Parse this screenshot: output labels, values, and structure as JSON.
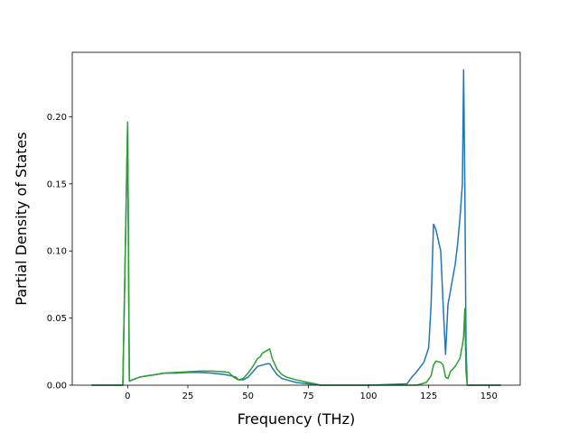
{
  "chart_data": {
    "type": "line",
    "title": "",
    "xlabel": "Frequency (THz)",
    "ylabel": "Partial Density of States",
    "xlim": [
      -23,
      163
    ],
    "ylim": [
      0,
      0.248
    ],
    "x_ticks": [
      0,
      25,
      50,
      75,
      100,
      125,
      150
    ],
    "y_ticks": [
      0.0,
      0.05,
      0.1,
      0.15,
      0.2
    ],
    "x_tick_labels": [
      "0",
      "25",
      "50",
      "75",
      "100",
      "125",
      "150"
    ],
    "y_tick_labels": [
      "0.00",
      "0.05",
      "0.10",
      "0.15",
      "0.20"
    ],
    "grid": false,
    "legend": false,
    "series": [
      {
        "color": "#1f77b4",
        "x": [
          -15,
          -2,
          0.0,
          0.7,
          2,
          5,
          8,
          12,
          15,
          20,
          25,
          30,
          35,
          40,
          43,
          45,
          46,
          48,
          50,
          52,
          54,
          56,
          58,
          59,
          60,
          62,
          64,
          66,
          68,
          70,
          75,
          78,
          80,
          100,
          116,
          118,
          120,
          123,
          125,
          126,
          127,
          128,
          129,
          130,
          131,
          132,
          133,
          134,
          135,
          136,
          137,
          138,
          139,
          139.5,
          140,
          140.5,
          141,
          145,
          155
        ],
        "y": [
          0,
          0,
          0.195,
          0.003,
          0.004,
          0.006,
          0.007,
          0.008,
          0.009,
          0.009,
          0.0095,
          0.0095,
          0.009,
          0.008,
          0.007,
          0.006,
          0.004,
          0.004,
          0.006,
          0.01,
          0.014,
          0.015,
          0.016,
          0.016,
          0.013,
          0.008,
          0.005,
          0.004,
          0.003,
          0.002,
          0.001,
          0.0005,
          0,
          0,
          0.001,
          0.006,
          0.01,
          0.017,
          0.028,
          0.06,
          0.12,
          0.116,
          0.108,
          0.1,
          0.06,
          0.023,
          0.06,
          0.07,
          0.08,
          0.09,
          0.105,
          0.125,
          0.15,
          0.235,
          0.15,
          0.03,
          0,
          0,
          0
        ]
      },
      {
        "color": "#2ca02c",
        "x": [
          -15,
          -2,
          0.0,
          0.7,
          2,
          5,
          8,
          12,
          15,
          20,
          25,
          30,
          35,
          40,
          42,
          44,
          46,
          48,
          50,
          52,
          54,
          55,
          56,
          58,
          59,
          60,
          62,
          64,
          66,
          70,
          75,
          78,
          80,
          100,
          120,
          124,
          126,
          127,
          128,
          130,
          131,
          132,
          133,
          134,
          136,
          138,
          139,
          139.5,
          140,
          140.5,
          141,
          145,
          155
        ],
        "y": [
          0,
          0,
          0.196,
          0.003,
          0.004,
          0.006,
          0.007,
          0.008,
          0.009,
          0.0095,
          0.01,
          0.0105,
          0.0105,
          0.01,
          0.0095,
          0.006,
          0.004,
          0.005,
          0.009,
          0.014,
          0.02,
          0.021,
          0.024,
          0.026,
          0.027,
          0.02,
          0.012,
          0.008,
          0.006,
          0.004,
          0.002,
          0.001,
          0,
          0,
          0,
          0.002,
          0.007,
          0.015,
          0.018,
          0.017,
          0.015,
          0.006,
          0.005,
          0.01,
          0.014,
          0.02,
          0.03,
          0.036,
          0.057,
          0.01,
          0,
          0,
          0
        ]
      }
    ]
  }
}
